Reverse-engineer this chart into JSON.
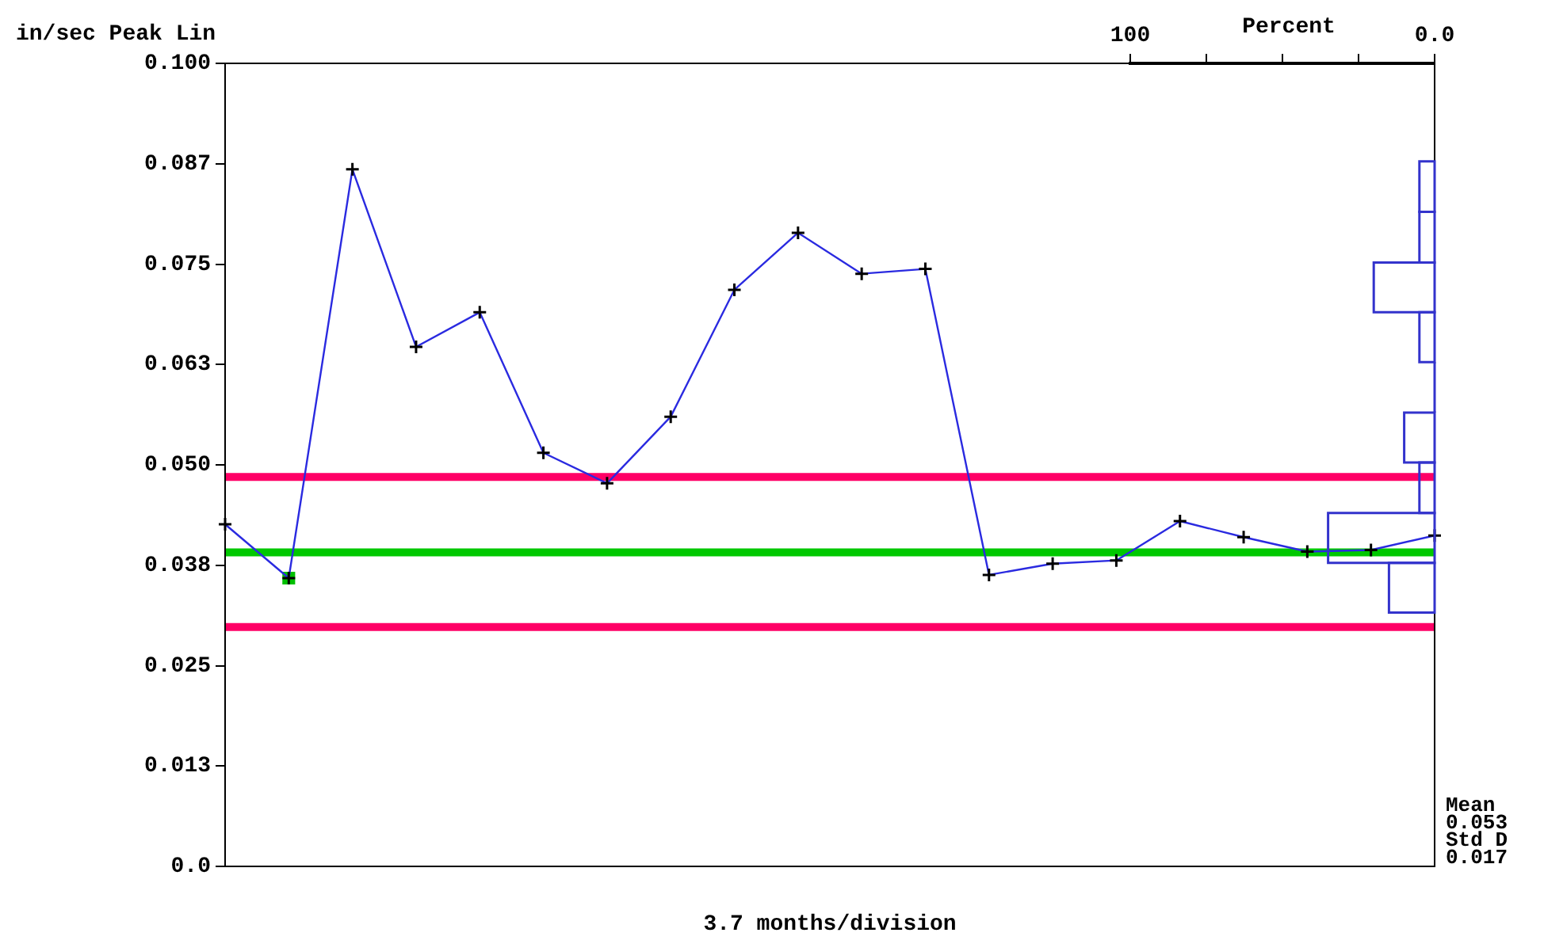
{
  "chart_data": [
    {
      "type": "line",
      "xlabel": "3.7 months/division",
      "ylabel": "in/sec Peak Lin",
      "categories": [
        null,
        null,
        null,
        null,
        null,
        null,
        null,
        null,
        null,
        null,
        null,
        null,
        null,
        null,
        null,
        null,
        null,
        null,
        null,
        null
      ],
      "ylim": [
        0,
        0.1
      ],
      "yticks": [
        {
          "value": 0,
          "label": "0.0"
        },
        {
          "value": 0.0125,
          "label": "0.013"
        },
        {
          "value": 0.025,
          "label": "0.025"
        },
        {
          "value": 0.0375,
          "label": "0.038"
        },
        {
          "value": 0.05,
          "label": "0.050"
        },
        {
          "value": 0.0625,
          "label": "0.063"
        },
        {
          "value": 0.075,
          "label": "0.075"
        },
        {
          "value": 0.0875,
          "label": "0.087"
        },
        {
          "value": 0.1,
          "label": "0.100"
        }
      ],
      "tick_labels": "y",
      "grid": false,
      "marker": "cross",
      "line_style": "solid",
      "series": [
        {
          "type": "line",
          "color": "#2a2ae0",
          "values": [
            0.0426,
            0.0359,
            0.0868,
            0.0647,
            0.069,
            0.0515,
            0.0477,
            0.056,
            0.0718,
            0.0789,
            0.0738,
            0.0744,
            0.0363,
            0.0377,
            0.0381,
            0.043,
            0.041,
            0.0392,
            0.0394,
            0.0412
          ]
        },
        {
          "type": "scatter",
          "color": "#00c000",
          "marker": "square",
          "values": [
            null,
            0.0359,
            null,
            null,
            null,
            null,
            null,
            null,
            null,
            null,
            null,
            null,
            null,
            null,
            null,
            null,
            null,
            null,
            null,
            null
          ]
        }
      ],
      "ref_lines": [
        {
          "axis": "y",
          "value": 0.0485,
          "color": "#ff0066"
        },
        {
          "axis": "y",
          "value": 0.0391,
          "color": "#00c800"
        },
        {
          "axis": "y",
          "value": 0.0298,
          "color": "#ff0066"
        }
      ],
      "annotations": [
        "Mean",
        "0.053",
        "Std D",
        "0.017"
      ]
    },
    {
      "type": "histogram",
      "orientation": "horizontal",
      "xlabel": "Percent",
      "color": "#3333cc",
      "tick_labels": "x",
      "xlim": [
        100,
        0
      ],
      "xticks": [
        {
          "value": 100,
          "label": "100"
        },
        {
          "value": 75,
          "label": null
        },
        {
          "value": 50,
          "label": null
        },
        {
          "value": 25,
          "label": null
        },
        {
          "value": 0,
          "label": "0.0"
        }
      ],
      "ylim": [
        0,
        0.1
      ],
      "bins": [
        0.0316,
        0.0378,
        0.044,
        0.0503,
        0.0565,
        0.0628,
        0.069,
        0.0752,
        0.0815,
        0.0878
      ],
      "values": [
        15,
        35,
        5,
        10,
        0,
        5,
        20,
        5,
        5
      ]
    }
  ]
}
